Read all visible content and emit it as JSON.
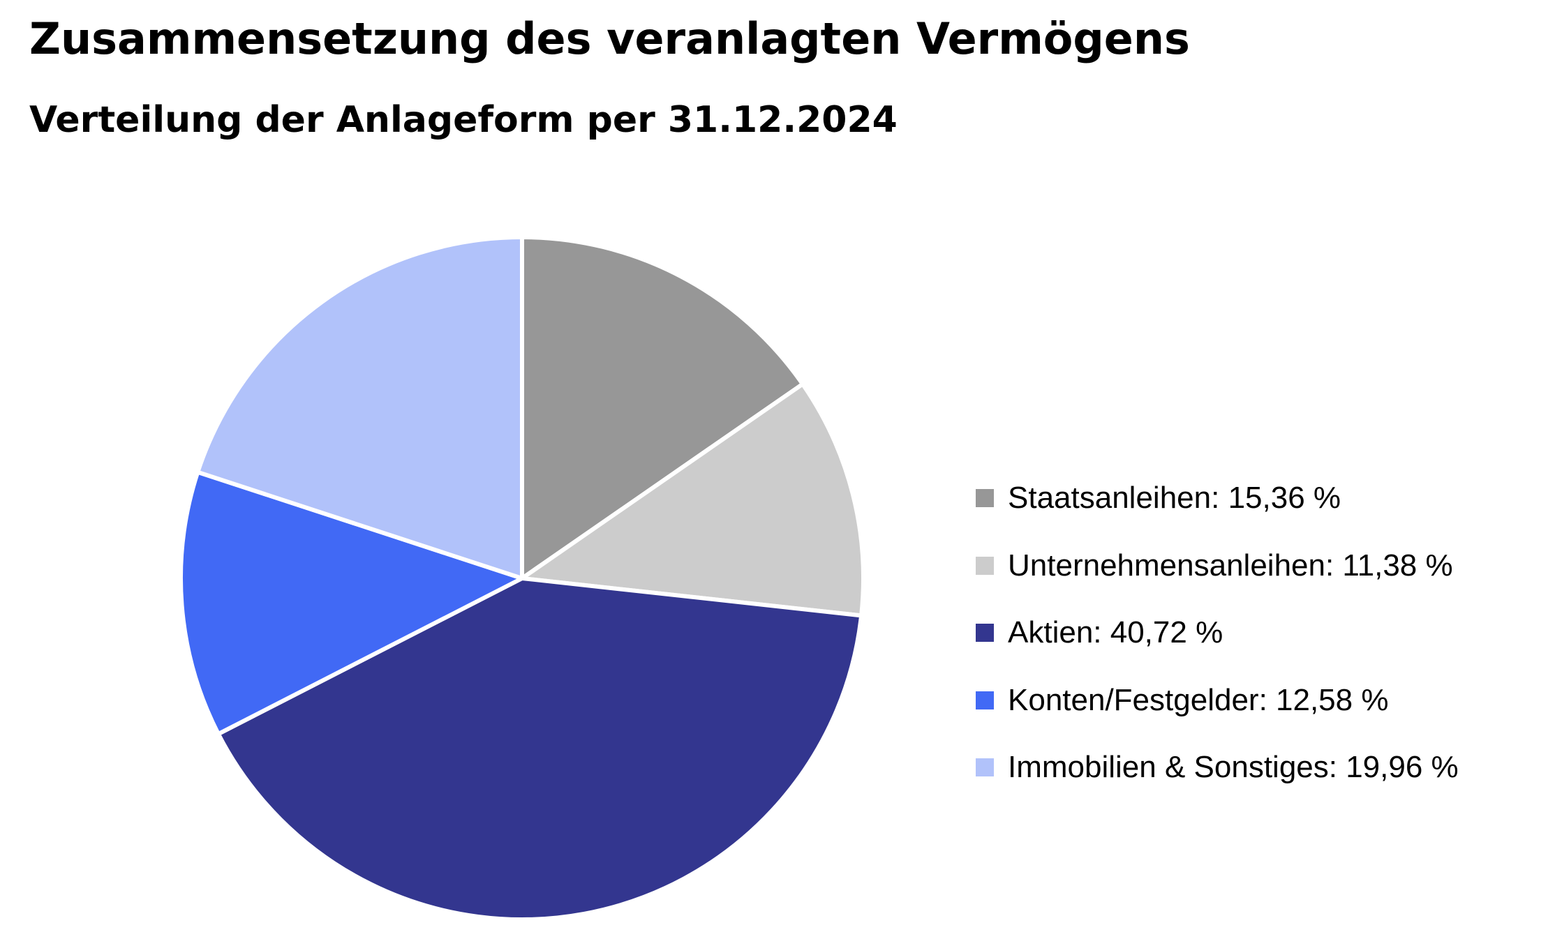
{
  "chart_data": {
    "type": "pie",
    "title": "Zusammensetzung des veranlagten Vermögens",
    "subtitle": "Verteilung der Anlageform per 31.12.2024",
    "unit": "%",
    "categories": [
      "Staatsanleihen",
      "Unternehmensanleihen",
      "Aktien",
      "Konten/Festgelder",
      "Immobilien & Sonstiges"
    ],
    "values": [
      15.36,
      11.38,
      40.72,
      12.58,
      19.96
    ],
    "colors": [
      "#979797",
      "#cccccc",
      "#33368f",
      "#4169f5",
      "#b1c2fa"
    ],
    "legend_labels": [
      "Staatsanleihen: 15,36 %",
      "Unternehmensanleihen: 11,38 %",
      "Aktien: 40,72 %",
      "Konten/Festgelder: 12,58 %",
      "Immobilien & Sonstiges: 19,96 %"
    ],
    "legend_position": "right",
    "start_angle": "12 o'clock",
    "direction": "clockwise"
  }
}
